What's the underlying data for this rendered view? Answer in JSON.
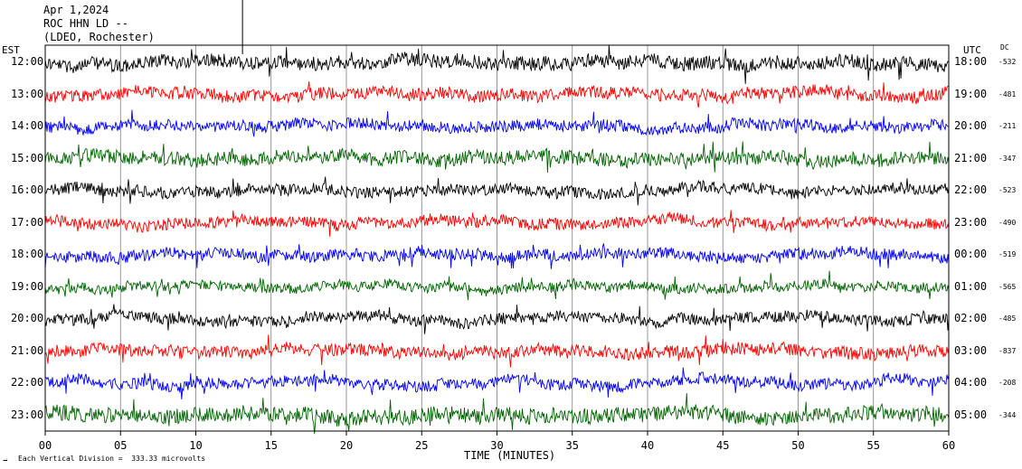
{
  "header": {
    "line1": "Apr 1,2024",
    "line2": "ROC HHN LD --",
    "line3": "(LDEO, Rochester)"
  },
  "left_tz": "EST",
  "right_tz": "UTC",
  "dc_header": "DC",
  "x_axis_title": "TIME (MINUTES)",
  "scale_note": "Each Vertical Division =  333.33 microvolts",
  "colors": {
    "black": "#000000",
    "red": "#ff0000",
    "blue": "#0000ff",
    "green": "#006400",
    "grid": "#7f7f7f"
  },
  "chart_data": {
    "type": "line",
    "title": "",
    "xlabel": "TIME (MINUTES)",
    "ylabel": "",
    "xlim": [
      0,
      60
    ],
    "x_ticks": [
      "00",
      "05",
      "10",
      "15",
      "20",
      "25",
      "30",
      "35",
      "40",
      "45",
      "50",
      "55",
      "60"
    ],
    "grid": "vertical every 5 minutes",
    "color_cycle": [
      "black",
      "red",
      "blue",
      "green"
    ],
    "traces": [
      {
        "local": "12:00",
        "utc": "18:00",
        "dc": "-532",
        "color": "black",
        "amp": 1.1
      },
      {
        "local": "13:00",
        "utc": "19:00",
        "dc": "-481",
        "color": "red",
        "amp": 1.0
      },
      {
        "local": "14:00",
        "utc": "20:00",
        "dc": "-211",
        "color": "blue",
        "amp": 0.9
      },
      {
        "local": "15:00",
        "utc": "21:00",
        "dc": "-347",
        "color": "green",
        "amp": 1.1
      },
      {
        "local": "16:00",
        "utc": "22:00",
        "dc": "-523",
        "color": "black",
        "amp": 0.9
      },
      {
        "local": "17:00",
        "utc": "23:00",
        "dc": "-490",
        "color": "red",
        "amp": 0.9
      },
      {
        "local": "18:00",
        "utc": "00:00",
        "dc": "-519",
        "color": "blue",
        "amp": 0.9
      },
      {
        "local": "19:00",
        "utc": "01:00",
        "dc": "-565",
        "color": "green",
        "amp": 0.8
      },
      {
        "local": "20:00",
        "utc": "02:00",
        "dc": "-485",
        "color": "black",
        "amp": 0.9
      },
      {
        "local": "21:00",
        "utc": "03:00",
        "dc": "-837",
        "color": "red",
        "amp": 1.0
      },
      {
        "local": "22:00",
        "utc": "04:00",
        "dc": "-208",
        "color": "blue",
        "amp": 0.9
      },
      {
        "local": "23:00",
        "utc": "05:00",
        "dc": "-344",
        "color": "green",
        "amp": 1.2
      }
    ]
  }
}
